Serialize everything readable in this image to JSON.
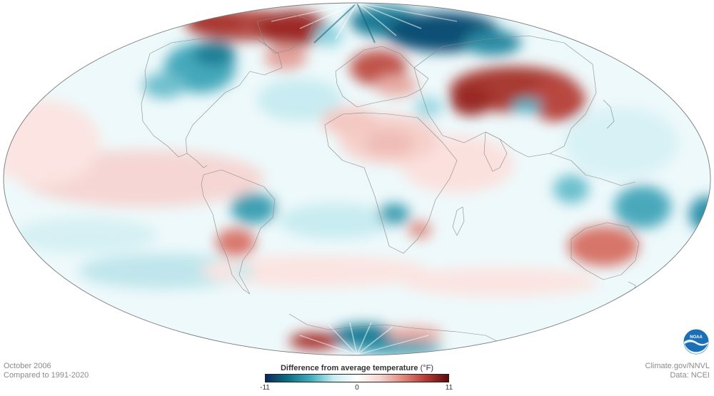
{
  "map": {
    "projection": "Mollweide",
    "variable": "Difference from average temperature",
    "unit_symbol": "(°F)",
    "period": "October 2006",
    "baseline": "Compared to 1991-2020"
  },
  "caption": {
    "date_line": "October 2006",
    "compare_line": "Compared to 1991-2020",
    "source_line1": "Climate.gov/NNVL",
    "source_line2": "Data: NCEI"
  },
  "legend": {
    "title": "Difference from average temperature",
    "unit": "(°F)",
    "min_label": "-11",
    "mid_label": "0",
    "max_label": "11",
    "min": -11,
    "max": 11,
    "colors": [
      "#0b2a5c",
      "#0e6f86",
      "#44aec1",
      "#c9eef2",
      "#ffffff",
      "#f5d6d2",
      "#e08a80",
      "#b43b33",
      "#5c0a0a"
    ]
  },
  "logo": {
    "name": "NOAA",
    "text": "NOAA"
  },
  "anomaly_regions": [
    {
      "region": "Northern Canada / Greenland",
      "anomaly": "warm"
    },
    {
      "region": "Northwest Russia / Scandinavia Arctic",
      "anomaly": "cold"
    },
    {
      "region": "Central Canada / Great Lakes",
      "anomaly": "cold"
    },
    {
      "region": "Eastern Europe / Western Russia",
      "anomaly": "warm"
    },
    {
      "region": "Central Asia / Mongolia / Northern China",
      "anomaly": "warm"
    },
    {
      "region": "Tibetan Plateau",
      "anomaly": "cold"
    },
    {
      "region": "Central-south Brazil",
      "anomaly": "cold"
    },
    {
      "region": "Paraguay / Northern Argentina",
      "anomaly": "warm"
    },
    {
      "region": "Southern Africa (Angola)",
      "anomaly": "cold"
    },
    {
      "region": "Mozambique / Madagascar area",
      "anomaly": "warm"
    },
    {
      "region": "Australia",
      "anomaly": "warm"
    },
    {
      "region": "Papua New Guinea / Coral Sea",
      "anomaly": "cold"
    },
    {
      "region": "Antarctic Peninsula",
      "anomaly": "warm"
    },
    {
      "region": "East Antarctica",
      "anomaly": "cold"
    },
    {
      "region": "Tropical Eastern Pacific",
      "anomaly": "warm"
    },
    {
      "region": "South Pacific",
      "anomaly": "cold"
    }
  ]
}
